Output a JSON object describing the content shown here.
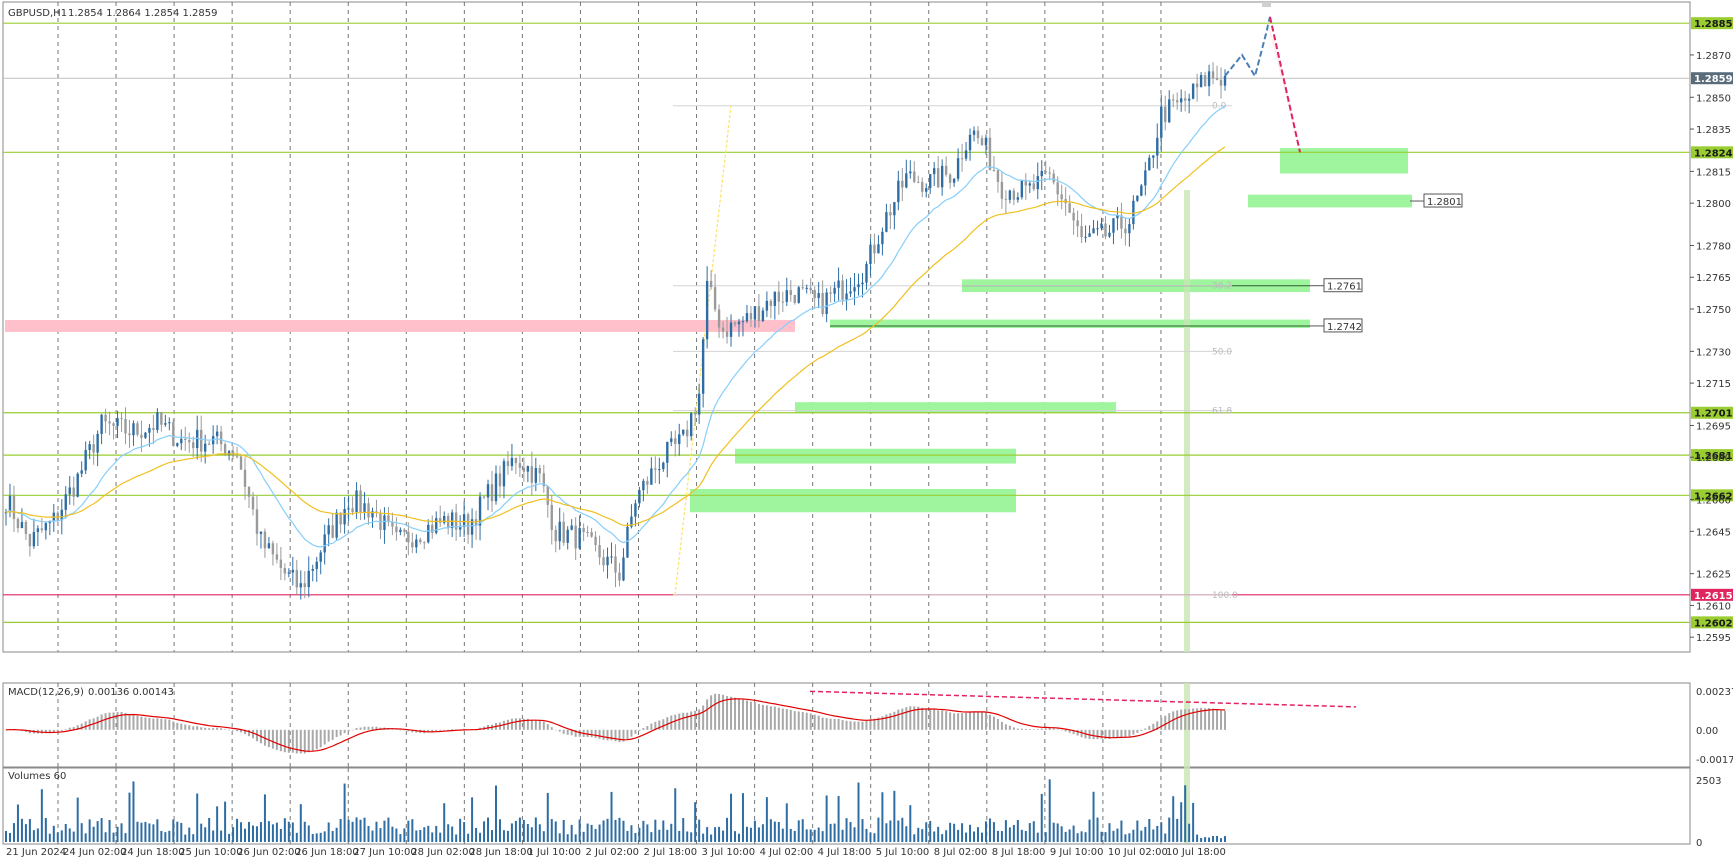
{
  "header": {
    "symbol": "GBPUSD,H1",
    "ohlc": "1.2854 1.2864 1.2854 1.2859"
  },
  "macd_header": {
    "label": "MACD(12,26,9)",
    "values": "0.00136 0.00143"
  },
  "volumes_header": {
    "label": "Volumes 60"
  },
  "colors": {
    "bull": "#2e6da4",
    "bear": "#9a9a9a",
    "level_line": "#9acd32",
    "support_zone": "#9ef59e",
    "resistance_zone": "#ffc0cb",
    "ma_fast": "#87cefa",
    "ma_slow": "#f0c020",
    "macd_signal": "#e00000",
    "macd_hist": "#a9a9a9",
    "forecast_up": "#4a7fb5",
    "forecast_down": "#e0245e",
    "low_line": "#e0245e",
    "current_tag": "#5a6b7a"
  },
  "chart_data": {
    "type": "candlestick",
    "instrument": "GBPUSD",
    "timeframe": "H1",
    "ylim": [
      1.2588,
      1.2895
    ],
    "price_axis_ticks": [
      "1.2870",
      "1.2850",
      "1.2835",
      "1.2815",
      "1.2800",
      "1.2780",
      "1.2765",
      "1.2750",
      "1.2730",
      "1.2715",
      "1.2695",
      "1.2680",
      "1.2660",
      "1.2645",
      "1.2625",
      "1.2610",
      "1.2595"
    ],
    "price_axis_tick_values": [
      1.287,
      1.285,
      1.2835,
      1.2815,
      1.28,
      1.278,
      1.2765,
      1.275,
      1.273,
      1.2715,
      1.2695,
      1.268,
      1.266,
      1.2645,
      1.2625,
      1.261,
      1.2595
    ],
    "time_labels": [
      "21 Jun 2024",
      "24 Jun 02:00",
      "24 Jun 18:00",
      "25 Jun 10:00",
      "26 Jun 02:00",
      "26 Jun 18:00",
      "27 Jun 10:00",
      "28 Jun 02:00",
      "28 Jun 18:00",
      "1 Jul 10:00",
      "2 Jul 02:00",
      "2 Jul 18:00",
      "3 Jul 10:00",
      "4 Jul 02:00",
      "4 Jul 18:00",
      "5 Jul 10:00",
      "8 Jul 02:00",
      "8 Jul 18:00",
      "9 Jul 10:00",
      "10 Jul 02:00",
      "10 Jul 18:00"
    ],
    "price_keypoints": [
      [
        0,
        1.266
      ],
      [
        6,
        1.264
      ],
      [
        12,
        1.265
      ],
      [
        18,
        1.267
      ],
      [
        24,
        1.2695
      ],
      [
        32,
        1.2692
      ],
      [
        38,
        1.2696
      ],
      [
        44,
        1.2688
      ],
      [
        52,
        1.2688
      ],
      [
        58,
        1.2682
      ],
      [
        64,
        1.264
      ],
      [
        70,
        1.2625
      ],
      [
        74,
        1.2618
      ],
      [
        80,
        1.264
      ],
      [
        86,
        1.266
      ],
      [
        92,
        1.2655
      ],
      [
        98,
        1.264
      ],
      [
        104,
        1.2645
      ],
      [
        110,
        1.265
      ],
      [
        116,
        1.2648
      ],
      [
        122,
        1.2665
      ],
      [
        128,
        1.268
      ],
      [
        134,
        1.267
      ],
      [
        138,
        1.2645
      ],
      [
        144,
        1.2642
      ],
      [
        150,
        1.2632
      ],
      [
        154,
        1.2625
      ],
      [
        158,
        1.266
      ],
      [
        164,
        1.2678
      ],
      [
        170,
        1.2688
      ],
      [
        174,
        1.271
      ],
      [
        176,
        1.276
      ],
      [
        180,
        1.274
      ],
      [
        186,
        1.2745
      ],
      [
        192,
        1.2755
      ],
      [
        198,
        1.2758
      ],
      [
        204,
        1.2752
      ],
      [
        210,
        1.276
      ],
      [
        216,
        1.277
      ],
      [
        220,
        1.279
      ],
      [
        226,
        1.2812
      ],
      [
        232,
        1.281
      ],
      [
        238,
        1.2815
      ],
      [
        242,
        1.2835
      ],
      [
        246,
        1.2825
      ],
      [
        250,
        1.2808
      ],
      [
        256,
        1.2805
      ],
      [
        262,
        1.2812
      ],
      [
        266,
        1.28
      ],
      [
        270,
        1.2782
      ],
      [
        276,
        1.2785
      ],
      [
        282,
        1.2792
      ],
      [
        286,
        1.281
      ],
      [
        290,
        1.2842
      ],
      [
        296,
        1.2848
      ],
      [
        302,
        1.286
      ],
      [
        306,
        1.2859
      ]
    ],
    "horizontal_levels": [
      {
        "price": 1.2885,
        "label": "1.2885",
        "color": "#9acd32"
      },
      {
        "price": 1.2824,
        "label": "1.2824",
        "color": "#9acd32"
      },
      {
        "price": 1.2701,
        "label": "1.2701",
        "color": "#9acd32"
      },
      {
        "price": 1.2681,
        "label": "1.2681",
        "color": "#9acd32"
      },
      {
        "price": 1.2662,
        "label": "1.2662",
        "color": "#9acd32"
      },
      {
        "price": 1.2615,
        "label": "1.2615",
        "color": "#e0245e"
      },
      {
        "price": 1.2602,
        "label": "1.2602",
        "color": "#9acd32"
      }
    ],
    "current_price": {
      "price": 1.2859,
      "label": "1.2859"
    },
    "zone_labels": [
      {
        "price": 1.2801,
        "label": "1.2801"
      },
      {
        "price": 1.2761,
        "label": "1.2761"
      },
      {
        "price": 1.2742,
        "label": "1.2742"
      }
    ],
    "fib_labels": [
      {
        "price": 1.2846,
        "label": "0.0"
      },
      {
        "price": 1.2761,
        "label": "38.2"
      },
      {
        "price": 1.273,
        "label": "50.0"
      },
      {
        "price": 1.2702,
        "label": "61.8"
      },
      {
        "price": 1.2615,
        "label": "100.0"
      }
    ],
    "macd_axis_ticks": [
      "0.00237",
      "0.00",
      "-0.00178"
    ],
    "macd_axis_tick_values": [
      0.00237,
      0.0,
      -0.00178
    ],
    "volume_axis_ticks": [
      "2503",
      "0"
    ],
    "volume_axis_tick_values": [
      2503,
      0
    ]
  }
}
